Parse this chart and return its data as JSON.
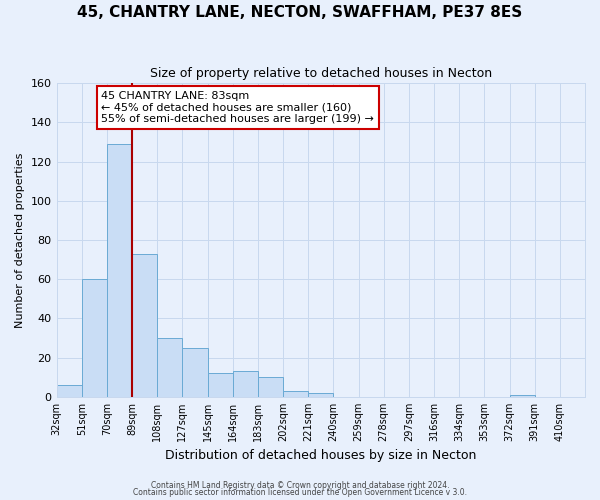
{
  "title": "45, CHANTRY LANE, NECTON, SWAFFHAM, PE37 8ES",
  "subtitle": "Size of property relative to detached houses in Necton",
  "xlabel": "Distribution of detached houses by size in Necton",
  "ylabel": "Number of detached properties",
  "footnote1": "Contains HM Land Registry data © Crown copyright and database right 2024.",
  "footnote2": "Contains public sector information licensed under the Open Government Licence v 3.0.",
  "bin_labels": [
    "32sqm",
    "51sqm",
    "70sqm",
    "89sqm",
    "108sqm",
    "127sqm",
    "145sqm",
    "164sqm",
    "183sqm",
    "202sqm",
    "221sqm",
    "240sqm",
    "259sqm",
    "278sqm",
    "297sqm",
    "316sqm",
    "334sqm",
    "353sqm",
    "372sqm",
    "391sqm",
    "410sqm"
  ],
  "bar_heights": [
    6,
    60,
    129,
    73,
    30,
    25,
    12,
    13,
    10,
    3,
    2,
    0,
    0,
    0,
    0,
    0,
    0,
    0,
    1,
    0,
    0
  ],
  "bar_color": "#c9ddf5",
  "bar_edge_color": "#6aaad4",
  "vline_color": "#aa0000",
  "ylim": [
    0,
    160
  ],
  "yticks": [
    0,
    20,
    40,
    60,
    80,
    100,
    120,
    140,
    160
  ],
  "annotation_title": "45 CHANTRY LANE: 83sqm",
  "annotation_line1": "← 45% of detached houses are smaller (160)",
  "annotation_line2": "55% of semi-detached houses are larger (199) →",
  "annotation_box_color": "#ffffff",
  "annotation_box_edge": "#cc0000",
  "grid_color": "#c8d8ee",
  "background_color": "#e8f0fc",
  "title_fontsize": 11,
  "subtitle_fontsize": 9
}
